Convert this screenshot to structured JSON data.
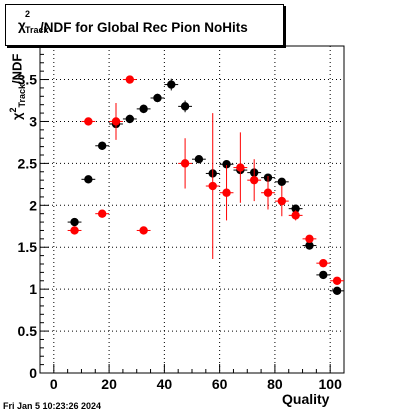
{
  "chart_data": {
    "type": "scatter",
    "title_text": "/NDF for Global Rec Pion NoHits",
    "title_symbol": "χ",
    "title_superscript": "2",
    "title_subscript": "Track",
    "xlabel": "Quality",
    "ylabel": "χ²_Track/NDF",
    "xlim": [
      -5,
      105
    ],
    "ylim": [
      0,
      3.9
    ],
    "x_ticks": [
      0,
      20,
      40,
      60,
      80,
      100
    ],
    "y_ticks": [
      0,
      0.5,
      1,
      1.5,
      2,
      2.5,
      3,
      3.5
    ],
    "x_tick_labels": [
      "0",
      "20",
      "40",
      "60",
      "80",
      "100"
    ],
    "y_tick_labels": [
      "0",
      "0.5",
      "1",
      "1.5",
      "2",
      "2.5",
      "3",
      "3.5"
    ],
    "grid": true,
    "series": [
      {
        "color": "#000000",
        "points": [
          {
            "x": 7.5,
            "y": 1.8,
            "err": 0.03
          },
          {
            "x": 12.5,
            "y": 2.31,
            "err": 0.03
          },
          {
            "x": 17.5,
            "y": 2.71,
            "err": 0.05
          },
          {
            "x": 22.5,
            "y": 2.97,
            "err": 0.05
          },
          {
            "x": 27.5,
            "y": 3.03,
            "err": 0.05
          },
          {
            "x": 32.5,
            "y": 3.15,
            "err": 0.05
          },
          {
            "x": 37.5,
            "y": 3.28,
            "err": 0.05
          },
          {
            "x": 42.5,
            "y": 3.44,
            "err": 0.07
          },
          {
            "x": 47.5,
            "y": 3.18,
            "err": 0.07
          },
          {
            "x": 52.5,
            "y": 2.55,
            "err": 0.04
          },
          {
            "x": 57.5,
            "y": 2.38,
            "err": 0.05
          },
          {
            "x": 62.5,
            "y": 2.49,
            "err": 0.04
          },
          {
            "x": 67.5,
            "y": 2.42,
            "err": 0.04
          },
          {
            "x": 72.5,
            "y": 2.39,
            "err": 0.05
          },
          {
            "x": 77.5,
            "y": 2.33,
            "err": 0.04
          },
          {
            "x": 82.5,
            "y": 2.28,
            "err": 0.04
          },
          {
            "x": 87.5,
            "y": 1.96,
            "err": 0.04
          },
          {
            "x": 92.5,
            "y": 1.52,
            "err": 0.03
          },
          {
            "x": 97.5,
            "y": 1.17,
            "err": 0.03
          },
          {
            "x": 102.5,
            "y": 0.98,
            "err": 0.03
          }
        ]
      },
      {
        "color": "#ff0000",
        "points": [
          {
            "x": 7.5,
            "y": 1.7,
            "err": 0.03
          },
          {
            "x": 12.5,
            "y": 3.0,
            "err": 0.04
          },
          {
            "x": 17.5,
            "y": 1.9,
            "err": 0.03
          },
          {
            "x": 22.5,
            "y": 3.0,
            "err": 0.22
          },
          {
            "x": 27.5,
            "y": 3.5,
            "err": 0.03
          },
          {
            "x": 32.5,
            "y": 1.7,
            "err": 0.03
          },
          {
            "x": 47.5,
            "y": 2.5,
            "err": 0.3
          },
          {
            "x": 57.5,
            "y": 2.23,
            "err": 0.87
          },
          {
            "x": 62.5,
            "y": 2.15,
            "err": 0.33
          },
          {
            "x": 67.5,
            "y": 2.45,
            "err": 0.42
          },
          {
            "x": 72.5,
            "y": 2.3,
            "err": 0.25
          },
          {
            "x": 77.5,
            "y": 2.15,
            "err": 0.2
          },
          {
            "x": 82.5,
            "y": 2.05,
            "err": 0.18
          },
          {
            "x": 87.5,
            "y": 1.88,
            "err": 0.06
          },
          {
            "x": 92.5,
            "y": 1.6,
            "err": 0.04
          },
          {
            "x": 97.5,
            "y": 1.31,
            "err": 0.03
          },
          {
            "x": 102.5,
            "y": 1.1,
            "err": 0.03
          }
        ]
      }
    ]
  },
  "footer": {
    "timestamp": "Fri Jan  5 10:23:26 2024"
  }
}
